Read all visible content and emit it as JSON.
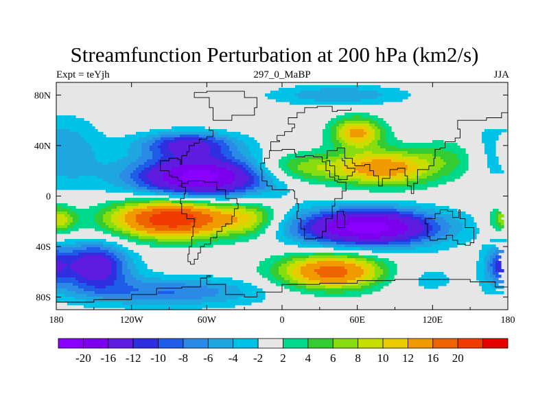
{
  "title": "Streamfunction Perturbation at 200 hPa (km2/s)",
  "left_string": "Expt = teYjh",
  "center_string": "297_0_MaBP",
  "right_string": "JJA",
  "map": {
    "projection": "cylindrical-equidistant",
    "lon_range": [
      -180,
      180
    ],
    "lat_range": [
      -90,
      90
    ],
    "x_ticks": [
      {
        "value": -180,
        "label": "180"
      },
      {
        "value": -120,
        "label": "120W"
      },
      {
        "value": -60,
        "label": "60W"
      },
      {
        "value": 0,
        "label": "0"
      },
      {
        "value": 60,
        "label": "60E"
      },
      {
        "value": 120,
        "label": "120E"
      },
      {
        "value": 180,
        "label": "180"
      }
    ],
    "y_ticks": [
      {
        "value": 80,
        "label": "80N"
      },
      {
        "value": 40,
        "label": "40N"
      },
      {
        "value": 0,
        "label": "0"
      },
      {
        "value": -40,
        "label": "40S"
      },
      {
        "value": -80,
        "label": "80S"
      }
    ],
    "background_color": "#e6e6e6",
    "coastline_color": "#000000"
  },
  "colorbar": {
    "labels": [
      "-20",
      "-16",
      "-12",
      "-10",
      "-8",
      "-6",
      "-4",
      "-2",
      "2",
      "4",
      "6",
      "8",
      "10",
      "12",
      "16",
      "20"
    ],
    "colors": [
      "#8a00ff",
      "#7a00ee",
      "#5f1be0",
      "#2f2ee0",
      "#1f5ce8",
      "#2a8ae6",
      "#1ea6e0",
      "#00c2e6",
      "#e6e6e6",
      "#00d88a",
      "#33cc33",
      "#88dd11",
      "#c8dd00",
      "#e8cc00",
      "#f09a00",
      "#ee6400",
      "#f03c00",
      "#e60000"
    ]
  },
  "field_blobs": [
    {
      "lon": -65,
      "lat": 15,
      "rlon": 55,
      "rlat": 17,
      "amp": -22
    },
    {
      "lon": -75,
      "lat": 41,
      "rlon": 38,
      "rlat": 10,
      "amp": -12
    },
    {
      "lon": -175,
      "lat": 35,
      "rlon": 32,
      "rlat": 28,
      "amp": -6
    },
    {
      "lon": 68,
      "lat": -25,
      "rlon": 58,
      "rlat": 15,
      "amp": -22
    },
    {
      "lon": -150,
      "lat": -55,
      "rlon": 28,
      "rlat": 18,
      "amp": -15
    },
    {
      "lon": -90,
      "lat": -76,
      "rlon": 75,
      "rlat": 12,
      "amp": -8
    },
    {
      "lon": 175,
      "lat": -55,
      "rlon": 14,
      "rlat": 16,
      "amp": -9
    },
    {
      "lon": 45,
      "lat": 80,
      "rlon": 55,
      "rlat": 8,
      "amp": -6
    },
    {
      "lon": -87,
      "lat": -18,
      "rlon": 48,
      "rlat": 15,
      "amp": 24
    },
    {
      "lon": 40,
      "lat": -60,
      "rlon": 42,
      "rlat": 14,
      "amp": 18
    },
    {
      "lon": 60,
      "lat": 50,
      "rlon": 20,
      "rlat": 12,
      "amp": 13
    },
    {
      "lon": 82,
      "lat": 22,
      "rlon": 38,
      "rlat": 14,
      "amp": 14
    },
    {
      "lon": 15,
      "lat": 22,
      "rlon": 40,
      "rlat": 12,
      "amp": 8
    },
    {
      "lon": 135,
      "lat": 30,
      "rlon": 30,
      "rlat": 16,
      "amp": 4
    },
    {
      "lon": -25,
      "lat": -18,
      "rlon": 22,
      "rlat": 14,
      "amp": 7
    },
    {
      "lon": -178,
      "lat": -20,
      "rlon": 14,
      "rlat": 12,
      "amp": 5
    },
    {
      "lon": 180,
      "lat": -18,
      "rlon": 14,
      "rlat": 10,
      "amp": 5
    },
    {
      "lon": 110,
      "lat": -65,
      "rlon": 35,
      "rlat": 14,
      "amp": -3
    }
  ]
}
